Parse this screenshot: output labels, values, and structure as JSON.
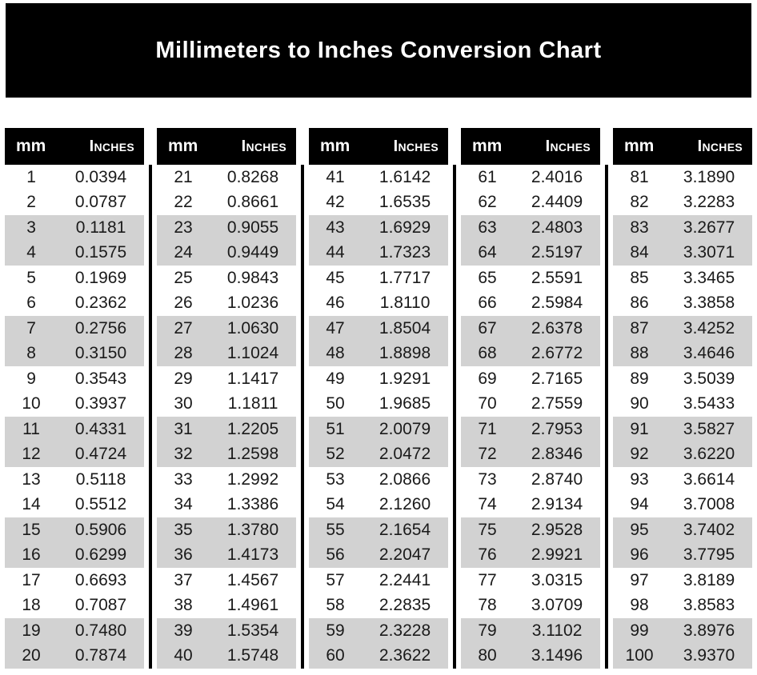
{
  "page": {
    "title": "Millimeters to Inches Conversion Chart"
  },
  "colors": {
    "banner_bg": "#000000",
    "header_bg": "#000000",
    "header_text": "#ffffff",
    "stripe": "#d2d2d2",
    "body_text": "#1a1a1a",
    "page_bg": "#ffffff"
  },
  "chart_data": {
    "type": "table",
    "title": "Millimeters to Inches Conversion Chart",
    "column_headers": [
      "mm",
      "Inches"
    ],
    "stripe_pattern": "rows in pairs: two white rows then two gray rows",
    "tables": [
      {
        "rows": [
          [
            "1",
            "0.0394"
          ],
          [
            "2",
            "0.0787"
          ],
          [
            "3",
            "0.1181"
          ],
          [
            "4",
            "0.1575"
          ],
          [
            "5",
            "0.1969"
          ],
          [
            "6",
            "0.2362"
          ],
          [
            "7",
            "0.2756"
          ],
          [
            "8",
            "0.3150"
          ],
          [
            "9",
            "0.3543"
          ],
          [
            "10",
            "0.3937"
          ],
          [
            "11",
            "0.4331"
          ],
          [
            "12",
            "0.4724"
          ],
          [
            "13",
            "0.5118"
          ],
          [
            "14",
            "0.5512"
          ],
          [
            "15",
            "0.5906"
          ],
          [
            "16",
            "0.6299"
          ],
          [
            "17",
            "0.6693"
          ],
          [
            "18",
            "0.7087"
          ],
          [
            "19",
            "0.7480"
          ],
          [
            "20",
            "0.7874"
          ]
        ]
      },
      {
        "rows": [
          [
            "21",
            "0.8268"
          ],
          [
            "22",
            "0.8661"
          ],
          [
            "23",
            "0.9055"
          ],
          [
            "24",
            "0.9449"
          ],
          [
            "25",
            "0.9843"
          ],
          [
            "26",
            "1.0236"
          ],
          [
            "27",
            "1.0630"
          ],
          [
            "28",
            "1.1024"
          ],
          [
            "29",
            "1.1417"
          ],
          [
            "30",
            "1.1811"
          ],
          [
            "31",
            "1.2205"
          ],
          [
            "32",
            "1.2598"
          ],
          [
            "33",
            "1.2992"
          ],
          [
            "34",
            "1.3386"
          ],
          [
            "35",
            "1.3780"
          ],
          [
            "36",
            "1.4173"
          ],
          [
            "37",
            "1.4567"
          ],
          [
            "38",
            "1.4961"
          ],
          [
            "39",
            "1.5354"
          ],
          [
            "40",
            "1.5748"
          ]
        ]
      },
      {
        "rows": [
          [
            "41",
            "1.6142"
          ],
          [
            "42",
            "1.6535"
          ],
          [
            "43",
            "1.6929"
          ],
          [
            "44",
            "1.7323"
          ],
          [
            "45",
            "1.7717"
          ],
          [
            "46",
            "1.8110"
          ],
          [
            "47",
            "1.8504"
          ],
          [
            "48",
            "1.8898"
          ],
          [
            "49",
            "1.9291"
          ],
          [
            "50",
            "1.9685"
          ],
          [
            "51",
            "2.0079"
          ],
          [
            "52",
            "2.0472"
          ],
          [
            "53",
            "2.0866"
          ],
          [
            "54",
            "2.1260"
          ],
          [
            "55",
            "2.1654"
          ],
          [
            "56",
            "2.2047"
          ],
          [
            "57",
            "2.2441"
          ],
          [
            "58",
            "2.2835"
          ],
          [
            "59",
            "2.3228"
          ],
          [
            "60",
            "2.3622"
          ]
        ]
      },
      {
        "rows": [
          [
            "61",
            "2.4016"
          ],
          [
            "62",
            "2.4409"
          ],
          [
            "63",
            "2.4803"
          ],
          [
            "64",
            "2.5197"
          ],
          [
            "65",
            "2.5591"
          ],
          [
            "66",
            "2.5984"
          ],
          [
            "67",
            "2.6378"
          ],
          [
            "68",
            "2.6772"
          ],
          [
            "69",
            "2.7165"
          ],
          [
            "70",
            "2.7559"
          ],
          [
            "71",
            "2.7953"
          ],
          [
            "72",
            "2.8346"
          ],
          [
            "73",
            "2.8740"
          ],
          [
            "74",
            "2.9134"
          ],
          [
            "75",
            "2.9528"
          ],
          [
            "76",
            "2.9921"
          ],
          [
            "77",
            "3.0315"
          ],
          [
            "78",
            "3.0709"
          ],
          [
            "79",
            "3.1102"
          ],
          [
            "80",
            "3.1496"
          ]
        ]
      },
      {
        "rows": [
          [
            "81",
            "3.1890"
          ],
          [
            "82",
            "3.2283"
          ],
          [
            "83",
            "3.2677"
          ],
          [
            "84",
            "3.3071"
          ],
          [
            "85",
            "3.3465"
          ],
          [
            "86",
            "3.3858"
          ],
          [
            "87",
            "3.4252"
          ],
          [
            "88",
            "3.4646"
          ],
          [
            "89",
            "3.5039"
          ],
          [
            "90",
            "3.5433"
          ],
          [
            "91",
            "3.5827"
          ],
          [
            "92",
            "3.6220"
          ],
          [
            "93",
            "3.6614"
          ],
          [
            "94",
            "3.7008"
          ],
          [
            "95",
            "3.7402"
          ],
          [
            "96",
            "3.7795"
          ],
          [
            "97",
            "3.8189"
          ],
          [
            "98",
            "3.8583"
          ],
          [
            "99",
            "3.8976"
          ],
          [
            "100",
            "3.9370"
          ]
        ]
      }
    ]
  }
}
